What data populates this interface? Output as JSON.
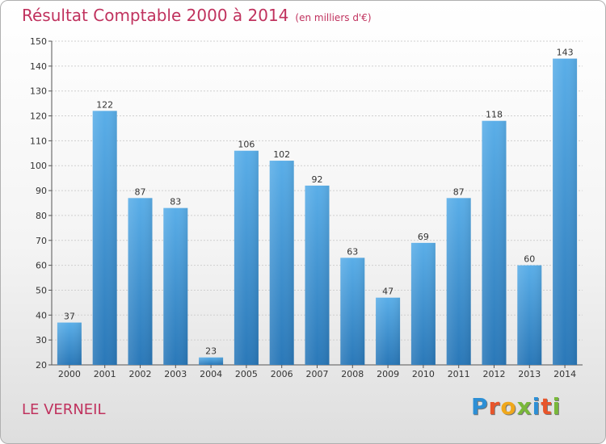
{
  "header": {
    "title": "Résultat Comptable 2000 à 2014",
    "unit": "(en milliers d'€)"
  },
  "footer": {
    "commune": "LE VERNEIL",
    "logo_letters": [
      "P",
      "r",
      "o",
      "x",
      "i",
      "t",
      "i"
    ],
    "logo_colors": [
      "#2d8fd5",
      "#e8552b",
      "#f0a81c",
      "#79b83a",
      "#2d8fd5",
      "#e8552b",
      "#79b83a"
    ]
  },
  "colors": {
    "bar_top": "#5aaee8",
    "bar_bottom": "#2a78b8",
    "title": "#c0325e"
  },
  "chart_data": {
    "type": "bar",
    "categories": [
      "2000",
      "2001",
      "2002",
      "2003",
      "2004",
      "2005",
      "2006",
      "2007",
      "2008",
      "2009",
      "2010",
      "2011",
      "2012",
      "2013",
      "2014"
    ],
    "values": [
      37,
      122,
      87,
      83,
      23,
      106,
      102,
      92,
      63,
      47,
      69,
      87,
      118,
      60,
      143
    ],
    "ylim": [
      20,
      150
    ],
    "yticks": [
      20,
      30,
      40,
      50,
      60,
      70,
      80,
      90,
      100,
      110,
      120,
      130,
      140,
      150
    ],
    "grid": true
  }
}
